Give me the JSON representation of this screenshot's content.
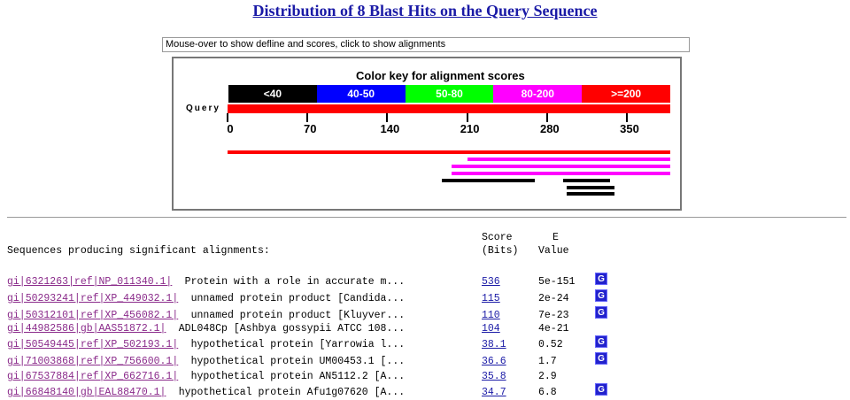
{
  "title": "Distribution of 8 Blast Hits on the Query Sequence",
  "defline_text": "Mouse-over to show defline and scores, click to show alignments",
  "color_key": {
    "title": "Color key for alignment scores",
    "cells": [
      {
        "label": "<40",
        "color": "#000000"
      },
      {
        "label": "40-50",
        "color": "#0000ff"
      },
      {
        "label": "50-80",
        "color": "#00ff00"
      },
      {
        "label": "80-200",
        "color": "#ff00ff"
      },
      {
        "label": ">=200",
        "color": "#ff0000"
      }
    ]
  },
  "query_label": "Query",
  "query_max": 388,
  "ticks": [
    "0",
    "70",
    "140",
    "210",
    "280",
    "350"
  ],
  "hits": [
    {
      "start": 0,
      "end": 388,
      "color": "#ff0000"
    },
    {
      "start": 210,
      "end": 388,
      "color": "#ff00ff"
    },
    {
      "start": 196,
      "end": 388,
      "color": "#ff00ff"
    },
    {
      "start": 196,
      "end": 388,
      "color": "#ff00ff"
    },
    {
      "start": 188,
      "end": 269,
      "color": "#000000"
    },
    {
      "start": 294,
      "end": 335,
      "color": "#000000"
    },
    {
      "start": 297,
      "end": 339,
      "color": "#000000"
    },
    {
      "start": 297,
      "end": 339,
      "color": "#000000"
    }
  ],
  "table": {
    "heading": "Sequences producing significant alignments:",
    "score_header_1": "Score",
    "score_header_2": "(Bits)",
    "e_header_1": "E",
    "e_header_2": "Value",
    "rows": [
      {
        "gi": "gi|6321263|ref|NP_011340.1|",
        "desc": "Protein with a role in accurate m...",
        "score": "536",
        "evalue": "5e-151",
        "gene": true
      },
      {
        "gi": "gi|50293241|ref|XP_449032.1|",
        "desc": "unnamed protein product [Candida...",
        "score": "115",
        "evalue": "2e-24",
        "gene": true
      },
      {
        "gi": "gi|50312101|ref|XP_456082.1|",
        "desc": "unnamed protein product [Kluyver...",
        "score": "110",
        "evalue": "7e-23",
        "gene": true
      },
      {
        "gi": "gi|44982586|gb|AAS51872.1|",
        "desc": "ADL048Cp [Ashbya gossypii ATCC 108...",
        "score": "104",
        "evalue": "4e-21",
        "gene": false
      },
      {
        "gi": "gi|50549445|ref|XP_502193.1|",
        "desc": "hypothetical protein [Yarrowia l...",
        "score": "38.1",
        "evalue": "0.52",
        "gene": true
      },
      {
        "gi": "gi|71003868|ref|XP_756600.1|",
        "desc": "hypothetical protein UM00453.1 [...",
        "score": "36.6",
        "evalue": "1.7",
        "gene": true
      },
      {
        "gi": "gi|67537884|ref|XP_662716.1|",
        "desc": "hypothetical protein AN5112.2 [A...",
        "score": "35.8",
        "evalue": "2.9",
        "gene": false
      },
      {
        "gi": "gi|66848140|gb|EAL88470.1|",
        "desc": "hypothetical protein Afu1g07620 [A...",
        "score": "34.7",
        "evalue": "6.8",
        "gene": true
      }
    ],
    "gene_button_label": "G"
  }
}
